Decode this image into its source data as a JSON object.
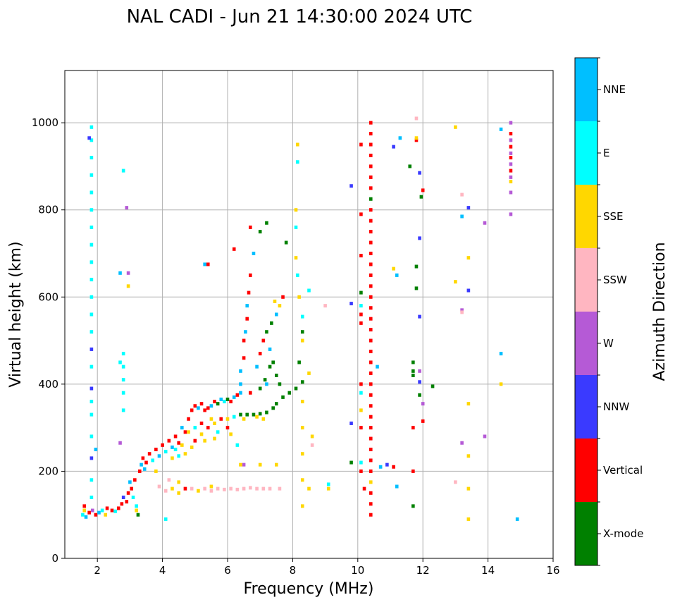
{
  "chart_data": {
    "type": "scatter",
    "title": "NAL CADI - Jun 21 14:30:00 2024 UTC",
    "xlabel": "Frequency (MHz)",
    "ylabel": "Virtual height (km)",
    "xlim": [
      1,
      16
    ],
    "ylim": [
      0,
      1120
    ],
    "xticks": [
      "2",
      "4",
      "6",
      "8",
      "10",
      "12",
      "14",
      "16"
    ],
    "yticks": [
      "0",
      "200",
      "400",
      "600",
      "800",
      "1000"
    ],
    "grid": true,
    "colorbar": {
      "label": "Azimuth Direction",
      "categories": [
        {
          "name": "X-mode",
          "color": "#008000"
        },
        {
          "name": "Vertical",
          "color": "#ff0000"
        },
        {
          "name": "NNW",
          "color": "#3a3aff"
        },
        {
          "name": "W",
          "color": "#b55ad6"
        },
        {
          "name": "SSW",
          "color": "#ffb6c1"
        },
        {
          "name": "SSE",
          "color": "#ffd700"
        },
        {
          "name": "E",
          "color": "#00ffff"
        },
        {
          "name": "NNE",
          "color": "#00bfff"
        }
      ]
    },
    "point_format": "[frequency_MHz, virtual_height_km, category_index]",
    "points": [
      [
        1.55,
        100,
        6
      ],
      [
        1.6,
        110,
        5
      ],
      [
        1.65,
        95,
        7
      ],
      [
        1.6,
        120,
        1
      ],
      [
        1.75,
        105,
        1
      ],
      [
        1.85,
        110,
        3
      ],
      [
        1.95,
        100,
        1
      ],
      [
        2.05,
        105,
        7
      ],
      [
        2.15,
        110,
        6
      ],
      [
        2.25,
        100,
        5
      ],
      [
        2.3,
        115,
        1
      ],
      [
        2.45,
        110,
        1
      ],
      [
        2.55,
        108,
        6
      ],
      [
        2.65,
        115,
        1
      ],
      [
        2.75,
        125,
        1
      ],
      [
        2.8,
        140,
        2
      ],
      [
        2.9,
        130,
        1
      ],
      [
        2.95,
        150,
        1
      ],
      [
        3.05,
        160,
        1
      ],
      [
        3.1,
        140,
        6
      ],
      [
        3.0,
        175,
        7
      ],
      [
        3.15,
        180,
        1
      ],
      [
        3.2,
        110,
        5
      ],
      [
        3.25,
        100,
        0
      ],
      [
        3.2,
        120,
        6
      ],
      [
        3.3,
        200,
        1
      ],
      [
        3.35,
        215,
        7
      ],
      [
        3.4,
        230,
        1
      ],
      [
        3.45,
        205,
        7
      ],
      [
        3.5,
        220,
        1
      ],
      [
        3.6,
        240,
        1
      ],
      [
        3.7,
        225,
        6
      ],
      [
        3.8,
        250,
        1
      ],
      [
        3.9,
        235,
        7
      ],
      [
        4.0,
        260,
        1
      ],
      [
        4.1,
        245,
        6
      ],
      [
        4.2,
        270,
        1
      ],
      [
        4.3,
        255,
        7
      ],
      [
        4.4,
        280,
        1
      ],
      [
        4.5,
        265,
        1
      ],
      [
        4.6,
        300,
        7
      ],
      [
        4.7,
        290,
        1
      ],
      [
        4.8,
        320,
        1
      ],
      [
        4.9,
        340,
        1
      ],
      [
        5.0,
        350,
        1
      ],
      [
        5.1,
        345,
        7
      ],
      [
        5.2,
        355,
        1
      ],
      [
        5.3,
        340,
        1
      ],
      [
        5.4,
        345,
        1
      ],
      [
        5.5,
        350,
        7
      ],
      [
        5.6,
        360,
        1
      ],
      [
        5.7,
        355,
        0
      ],
      [
        5.8,
        365,
        7
      ],
      [
        5.9,
        360,
        6
      ],
      [
        6.0,
        365,
        0
      ],
      [
        6.1,
        360,
        1
      ],
      [
        6.2,
        370,
        7
      ],
      [
        6.3,
        375,
        1
      ],
      [
        6.4,
        380,
        7
      ],
      [
        4.3,
        230,
        5
      ],
      [
        4.5,
        235,
        6
      ],
      [
        4.7,
        240,
        5
      ],
      [
        4.9,
        255,
        5
      ],
      [
        5.0,
        270,
        1
      ],
      [
        5.2,
        285,
        5
      ],
      [
        5.4,
        300,
        1
      ],
      [
        5.6,
        310,
        5
      ],
      [
        5.8,
        320,
        1
      ],
      [
        6.0,
        320,
        5
      ],
      [
        6.2,
        325,
        6
      ],
      [
        6.4,
        330,
        0
      ],
      [
        6.6,
        330,
        0
      ],
      [
        6.8,
        330,
        0
      ],
      [
        7.0,
        332,
        0
      ],
      [
        7.2,
        335,
        0
      ],
      [
        7.4,
        345,
        0
      ],
      [
        7.5,
        355,
        0
      ],
      [
        7.7,
        370,
        0
      ],
      [
        7.9,
        380,
        0
      ],
      [
        8.1,
        390,
        0
      ],
      [
        8.3,
        405,
        0
      ],
      [
        6.5,
        320,
        5
      ],
      [
        6.9,
        325,
        5
      ],
      [
        7.1,
        320,
        5
      ],
      [
        4.8,
        290,
        5
      ],
      [
        5.0,
        300,
        6
      ],
      [
        5.2,
        310,
        1
      ],
      [
        5.5,
        320,
        5
      ],
      [
        5.3,
        270,
        5
      ],
      [
        5.7,
        290,
        6
      ],
      [
        6.0,
        300,
        1
      ],
      [
        6.1,
        285,
        5
      ],
      [
        6.3,
        260,
        6
      ],
      [
        5.6,
        275,
        5
      ],
      [
        4.6,
        260,
        5
      ],
      [
        4.4,
        250,
        6
      ],
      [
        6.4,
        400,
        7
      ],
      [
        6.4,
        430,
        7
      ],
      [
        6.5,
        460,
        1
      ],
      [
        6.5,
        500,
        1
      ],
      [
        6.55,
        520,
        7
      ],
      [
        6.6,
        550,
        1
      ],
      [
        6.6,
        580,
        7
      ],
      [
        6.65,
        610,
        1
      ],
      [
        6.7,
        650,
        1
      ],
      [
        6.8,
        700,
        7
      ],
      [
        6.9,
        440,
        7
      ],
      [
        7.0,
        470,
        1
      ],
      [
        7.1,
        500,
        1
      ],
      [
        7.2,
        520,
        0
      ],
      [
        7.3,
        480,
        7
      ],
      [
        7.4,
        450,
        0
      ],
      [
        7.5,
        420,
        0
      ],
      [
        7.6,
        400,
        0
      ],
      [
        7.2,
        400,
        7
      ],
      [
        7.35,
        540,
        0
      ],
      [
        7.5,
        560,
        7
      ],
      [
        7.6,
        580,
        5
      ],
      [
        7.7,
        600,
        1
      ],
      [
        7.45,
        590,
        5
      ],
      [
        7.3,
        440,
        0
      ],
      [
        7.15,
        410,
        0
      ],
      [
        7.0,
        390,
        0
      ],
      [
        6.7,
        380,
        1
      ],
      [
        3.9,
        165,
        4
      ],
      [
        4.1,
        155,
        4
      ],
      [
        4.3,
        160,
        5
      ],
      [
        4.5,
        150,
        5
      ],
      [
        4.7,
        160,
        1
      ],
      [
        4.9,
        160,
        4
      ],
      [
        5.1,
        155,
        5
      ],
      [
        5.3,
        160,
        4
      ],
      [
        5.5,
        155,
        4
      ],
      [
        5.7,
        160,
        4
      ],
      [
        5.9,
        158,
        4
      ],
      [
        6.1,
        160,
        4
      ],
      [
        6.3,
        158,
        4
      ],
      [
        6.5,
        160,
        4
      ],
      [
        6.7,
        162,
        4
      ],
      [
        6.9,
        160,
        4
      ],
      [
        7.1,
        160,
        4
      ],
      [
        7.3,
        160,
        4
      ],
      [
        7.6,
        160,
        4
      ],
      [
        4.2,
        180,
        4
      ],
      [
        4.5,
        175,
        5
      ],
      [
        5.5,
        165,
        5
      ],
      [
        3.8,
        200,
        5
      ],
      [
        1.82,
        140,
        6
      ],
      [
        1.82,
        180,
        6
      ],
      [
        1.82,
        230,
        2
      ],
      [
        1.82,
        280,
        6
      ],
      [
        1.82,
        330,
        6
      ],
      [
        1.82,
        360,
        6
      ],
      [
        1.82,
        390,
        2
      ],
      [
        1.82,
        440,
        6
      ],
      [
        1.82,
        480,
        2
      ],
      [
        1.82,
        520,
        6
      ],
      [
        1.82,
        560,
        6
      ],
      [
        1.82,
        600,
        6
      ],
      [
        1.82,
        640,
        6
      ],
      [
        1.82,
        680,
        6
      ],
      [
        1.82,
        720,
        6
      ],
      [
        1.82,
        760,
        6
      ],
      [
        1.82,
        800,
        6
      ],
      [
        1.82,
        840,
        6
      ],
      [
        1.82,
        880,
        6
      ],
      [
        1.82,
        920,
        6
      ],
      [
        1.82,
        960,
        6
      ],
      [
        1.82,
        990,
        6
      ],
      [
        1.75,
        965,
        2
      ],
      [
        2.8,
        340,
        6
      ],
      [
        2.8,
        380,
        6
      ],
      [
        2.8,
        410,
        6
      ],
      [
        2.8,
        440,
        6
      ],
      [
        2.8,
        470,
        6
      ],
      [
        2.8,
        890,
        6
      ],
      [
        2.7,
        450,
        6
      ],
      [
        8.15,
        950,
        5
      ],
      [
        8.15,
        910,
        6
      ],
      [
        8.1,
        800,
        5
      ],
      [
        8.1,
        760,
        6
      ],
      [
        8.1,
        690,
        5
      ],
      [
        8.15,
        650,
        6
      ],
      [
        8.2,
        600,
        5
      ],
      [
        8.3,
        555,
        6
      ],
      [
        8.3,
        520,
        0
      ],
      [
        8.3,
        500,
        5
      ],
      [
        8.2,
        450,
        0
      ],
      [
        8.5,
        425,
        5
      ],
      [
        8.6,
        280,
        5
      ],
      [
        8.6,
        260,
        4
      ],
      [
        8.3,
        360,
        5
      ],
      [
        8.3,
        300,
        5
      ],
      [
        8.3,
        240,
        5
      ],
      [
        8.3,
        180,
        5
      ],
      [
        8.3,
        120,
        5
      ],
      [
        8.5,
        160,
        5
      ],
      [
        9.1,
        170,
        6
      ],
      [
        9.1,
        160,
        5
      ],
      [
        9.0,
        580,
        4
      ],
      [
        8.5,
        615,
        6
      ],
      [
        10.4,
        100,
        1
      ],
      [
        10.4,
        125,
        1
      ],
      [
        10.4,
        150,
        1
      ],
      [
        10.4,
        175,
        5
      ],
      [
        10.4,
        200,
        1
      ],
      [
        10.4,
        225,
        1
      ],
      [
        10.4,
        250,
        1
      ],
      [
        10.4,
        275,
        1
      ],
      [
        10.4,
        300,
        1
      ],
      [
        10.4,
        325,
        1
      ],
      [
        10.4,
        350,
        1
      ],
      [
        10.4,
        375,
        1
      ],
      [
        10.4,
        400,
        1
      ],
      [
        10.4,
        425,
        1
      ],
      [
        10.4,
        450,
        1
      ],
      [
        10.4,
        475,
        1
      ],
      [
        10.4,
        500,
        1
      ],
      [
        10.4,
        525,
        1
      ],
      [
        10.4,
        550,
        1
      ],
      [
        10.4,
        575,
        1
      ],
      [
        10.4,
        600,
        1
      ],
      [
        10.4,
        625,
        1
      ],
      [
        10.4,
        650,
        1
      ],
      [
        10.4,
        675,
        1
      ],
      [
        10.4,
        700,
        1
      ],
      [
        10.4,
        725,
        1
      ],
      [
        10.4,
        750,
        1
      ],
      [
        10.4,
        775,
        1
      ],
      [
        10.4,
        800,
        1
      ],
      [
        10.4,
        825,
        0
      ],
      [
        10.4,
        850,
        1
      ],
      [
        10.4,
        875,
        1
      ],
      [
        10.4,
        900,
        1
      ],
      [
        10.4,
        925,
        1
      ],
      [
        10.4,
        950,
        1
      ],
      [
        10.4,
        975,
        1
      ],
      [
        10.4,
        1000,
        1
      ],
      [
        10.1,
        950,
        1
      ],
      [
        10.1,
        790,
        1
      ],
      [
        10.1,
        695,
        1
      ],
      [
        10.1,
        610,
        0
      ],
      [
        10.1,
        580,
        6
      ],
      [
        10.1,
        560,
        1
      ],
      [
        10.1,
        540,
        1
      ],
      [
        10.1,
        400,
        1
      ],
      [
        10.1,
        380,
        6
      ],
      [
        10.1,
        340,
        5
      ],
      [
        10.1,
        300,
        1
      ],
      [
        10.1,
        220,
        6
      ],
      [
        10.1,
        200,
        1
      ],
      [
        10.2,
        160,
        1
      ],
      [
        9.8,
        310,
        2
      ],
      [
        9.8,
        585,
        2
      ],
      [
        9.8,
        855,
        2
      ],
      [
        9.8,
        220,
        0
      ],
      [
        10.6,
        440,
        7
      ],
      [
        10.7,
        210,
        7
      ],
      [
        10.9,
        215,
        2
      ],
      [
        11.1,
        210,
        1
      ],
      [
        11.1,
        945,
        2
      ],
      [
        11.2,
        165,
        7
      ],
      [
        11.3,
        965,
        7
      ],
      [
        11.2,
        650,
        7
      ],
      [
        11.1,
        665,
        5
      ],
      [
        11.6,
        900,
        0
      ],
      [
        11.8,
        960,
        1
      ],
      [
        11.8,
        1010,
        4
      ],
      [
        11.8,
        965,
        5
      ],
      [
        11.8,
        670,
        0
      ],
      [
        11.8,
        620,
        0
      ],
      [
        11.7,
        450,
        0
      ],
      [
        11.7,
        430,
        0
      ],
      [
        11.7,
        420,
        0
      ],
      [
        11.7,
        300,
        1
      ],
      [
        11.7,
        200,
        1
      ],
      [
        11.7,
        120,
        0
      ],
      [
        11.9,
        555,
        2
      ],
      [
        11.9,
        735,
        2
      ],
      [
        11.9,
        885,
        2
      ],
      [
        11.9,
        405,
        2
      ],
      [
        11.9,
        375,
        0
      ],
      [
        11.95,
        830,
        0
      ],
      [
        12.0,
        845,
        1
      ],
      [
        12.0,
        355,
        3
      ],
      [
        12.0,
        315,
        1
      ],
      [
        11.9,
        430,
        3
      ],
      [
        12.3,
        395,
        0
      ],
      [
        13.0,
        990,
        5
      ],
      [
        13.0,
        635,
        5
      ],
      [
        13.0,
        175,
        4
      ],
      [
        13.2,
        835,
        4
      ],
      [
        13.2,
        785,
        7
      ],
      [
        13.2,
        570,
        3
      ],
      [
        13.2,
        565,
        4
      ],
      [
        13.2,
        265,
        3
      ],
      [
        13.4,
        805,
        2
      ],
      [
        13.4,
        690,
        5
      ],
      [
        13.4,
        615,
        2
      ],
      [
        13.4,
        355,
        5
      ],
      [
        13.4,
        235,
        5
      ],
      [
        13.4,
        160,
        5
      ],
      [
        13.4,
        90,
        5
      ],
      [
        13.9,
        770,
        3
      ],
      [
        13.9,
        280,
        3
      ],
      [
        14.4,
        985,
        7
      ],
      [
        14.4,
        470,
        7
      ],
      [
        14.4,
        400,
        5
      ],
      [
        14.9,
        90,
        7
      ],
      [
        14.7,
        1000,
        3
      ],
      [
        14.7,
        975,
        1
      ],
      [
        14.7,
        960,
        3
      ],
      [
        14.7,
        945,
        1
      ],
      [
        14.7,
        930,
        3
      ],
      [
        14.7,
        920,
        1
      ],
      [
        14.7,
        905,
        3
      ],
      [
        14.7,
        890,
        1
      ],
      [
        14.7,
        875,
        3
      ],
      [
        14.7,
        865,
        5
      ],
      [
        14.7,
        840,
        3
      ],
      [
        14.7,
        790,
        3
      ],
      [
        2.9,
        805,
        3
      ],
      [
        2.95,
        655,
        3
      ],
      [
        2.95,
        625,
        5
      ],
      [
        5.3,
        675,
        7
      ],
      [
        5.4,
        675,
        1
      ],
      [
        6.2,
        710,
        1
      ],
      [
        6.7,
        760,
        1
      ],
      [
        7.0,
        750,
        0
      ],
      [
        7.2,
        770,
        0
      ],
      [
        7.8,
        725,
        0
      ],
      [
        1.95,
        250,
        7
      ],
      [
        2.7,
        655,
        7
      ],
      [
        2.7,
        265,
        3
      ],
      [
        4.1,
        90,
        6
      ],
      [
        6.5,
        215,
        3
      ],
      [
        6.4,
        215,
        5
      ],
      [
        7.0,
        215,
        5
      ],
      [
        7.5,
        215,
        5
      ]
    ]
  }
}
